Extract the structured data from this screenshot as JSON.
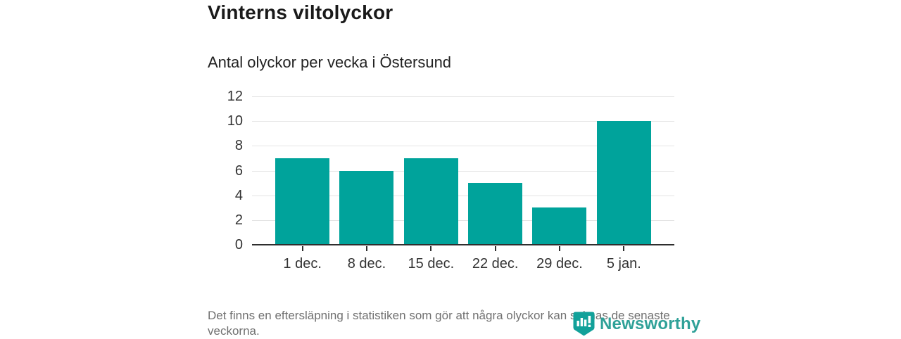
{
  "header": {
    "title": "Vinterns viltolyckor",
    "subtitle": "Antal olyckor per vecka i Östersund"
  },
  "chart_data": {
    "type": "bar",
    "categories": [
      "1 dec.",
      "8 dec.",
      "15 dec.",
      "22 dec.",
      "29 dec.",
      "5 jan."
    ],
    "values": [
      7,
      6,
      7,
      5,
      3,
      10
    ],
    "title": "Vinterns viltolyckor",
    "subtitle": "Antal olyckor per vecka i Östersund",
    "xlabel": "",
    "ylabel": "",
    "ylim": [
      0,
      12
    ],
    "yticks": [
      0,
      2,
      4,
      6,
      8,
      10,
      12
    ],
    "grid": true,
    "legend": "none",
    "bar_color": "#00a39b"
  },
  "footer": {
    "note": "Det finns en eftersläpning i statistiken som gör att några olyckor kan saknas de senaste veckorna."
  },
  "branding": {
    "logo_text": "Newsworthy",
    "logo_icon": "newsworthy-pin-barchart-icon",
    "logo_color": "#2fa198",
    "icon_color": "#12a19a"
  }
}
